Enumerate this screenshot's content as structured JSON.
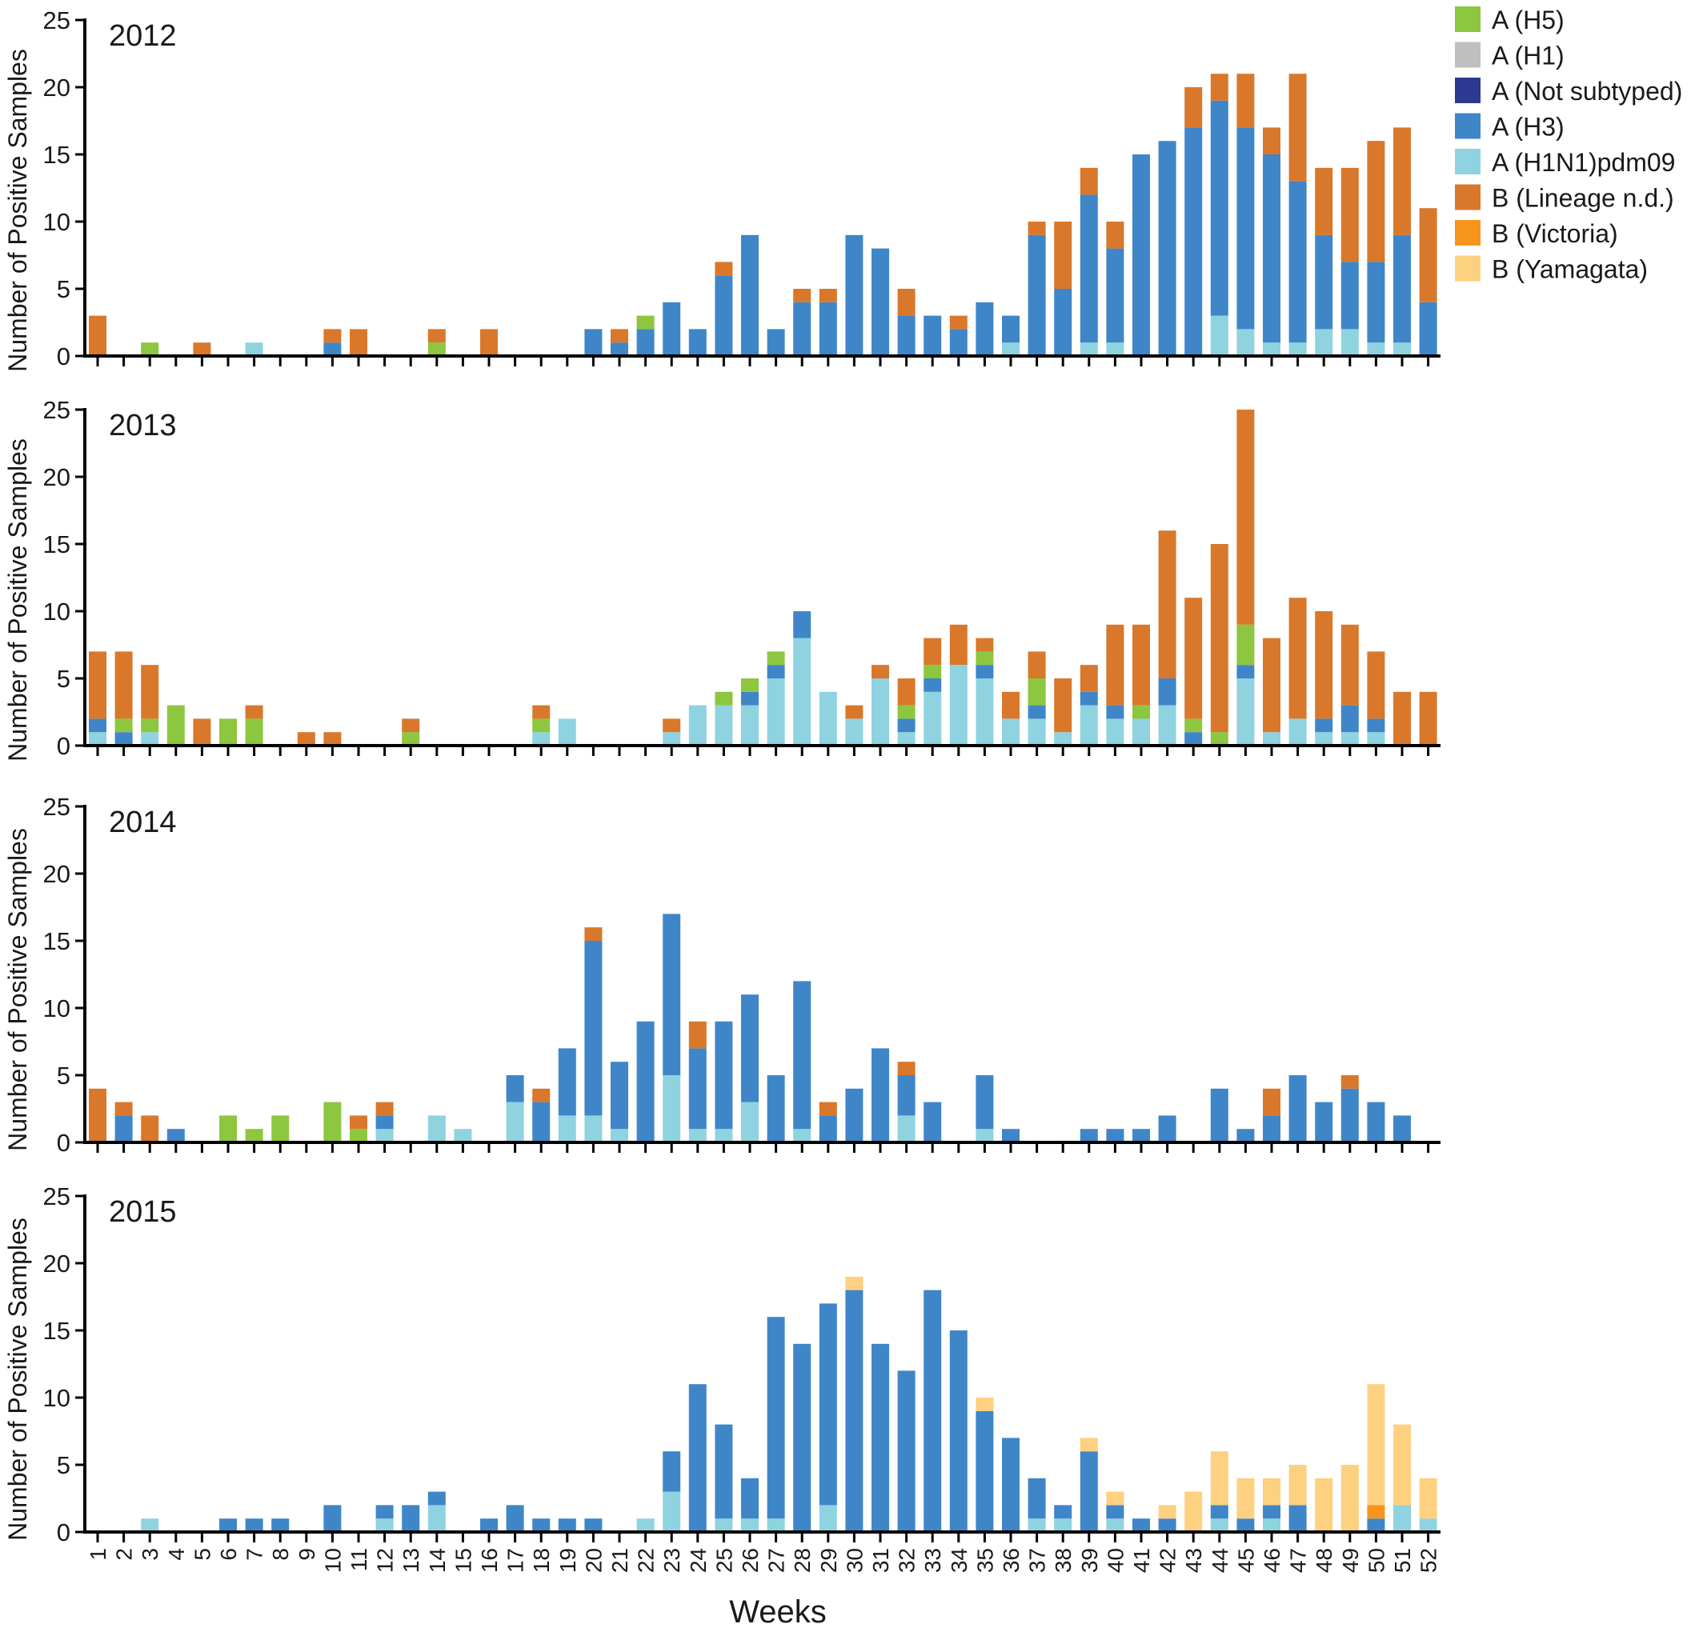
{
  "figure": {
    "ylabel": "Number of Positive Samples",
    "xlabel": "Weeks"
  },
  "legend": [
    {
      "key": "h5",
      "label": "A (H5)",
      "color": "#8dc63f"
    },
    {
      "key": "h1",
      "label": "A (H1)",
      "color": "#bfbfbf"
    },
    {
      "key": "ns",
      "label": "A (Not subtyped)",
      "color": "#2b3990"
    },
    {
      "key": "h3",
      "label": "A (H3)",
      "color": "#3f86c9"
    },
    {
      "key": "pdm",
      "label": "A (H1N1)pdm09",
      "color": "#8fd3e0"
    },
    {
      "key": "bnd",
      "label": "B (Lineage n.d.)",
      "color": "#d9782b"
    },
    {
      "key": "vic",
      "label": "B (Victoria)",
      "color": "#f7941d"
    },
    {
      "key": "yam",
      "label": "B (Yamagata)",
      "color": "#fdd17f"
    }
  ],
  "chart_data": [
    {
      "type": "bar",
      "stacked": true,
      "title": "2012",
      "x": [
        1,
        2,
        3,
        4,
        5,
        6,
        7,
        8,
        9,
        10,
        11,
        12,
        13,
        14,
        15,
        16,
        17,
        18,
        19,
        20,
        21,
        22,
        23,
        24,
        25,
        26,
        27,
        28,
        29,
        30,
        31,
        32,
        33,
        34,
        35,
        36,
        37,
        38,
        39,
        40,
        41,
        42,
        43,
        44,
        45,
        46,
        47,
        48,
        49,
        50,
        51,
        52
      ],
      "ylim": [
        0,
        25
      ],
      "yticks": [
        0,
        5,
        10,
        15,
        20,
        25
      ],
      "series": [
        {
          "name": "A (H1N1)pdm09",
          "key": "pdm",
          "values": [
            0,
            0,
            0,
            0,
            0,
            0,
            1,
            0,
            0,
            0,
            0,
            0,
            0,
            0,
            0,
            0,
            0,
            0,
            0,
            0,
            0,
            0,
            0,
            0,
            0,
            0,
            0,
            0,
            0,
            0,
            0,
            0,
            0,
            0,
            0,
            1,
            0,
            0,
            1,
            1,
            0,
            0,
            0,
            3,
            2,
            1,
            1,
            2,
            2,
            1,
            1,
            0
          ]
        },
        {
          "name": "A (H3)",
          "key": "h3",
          "values": [
            0,
            0,
            0,
            0,
            0,
            0,
            0,
            0,
            0,
            1,
            0,
            0,
            0,
            0,
            0,
            0,
            0,
            0,
            0,
            2,
            1,
            2,
            4,
            2,
            6,
            9,
            2,
            4,
            4,
            9,
            8,
            3,
            3,
            2,
            4,
            2,
            9,
            5,
            11,
            7,
            15,
            16,
            17,
            16,
            15,
            14,
            12,
            7,
            5,
            6,
            8,
            4
          ]
        },
        {
          "name": "A (H5)",
          "key": "h5",
          "values": [
            0,
            0,
            1,
            0,
            0,
            0,
            0,
            0,
            0,
            0,
            0,
            0,
            0,
            1,
            0,
            0,
            0,
            0,
            0,
            0,
            0,
            1,
            0,
            0,
            0,
            0,
            0,
            0,
            0,
            0,
            0,
            0,
            0,
            0,
            0,
            0,
            0,
            0,
            0,
            0,
            0,
            0,
            0,
            0,
            0,
            0,
            0,
            0,
            0,
            0,
            0,
            0
          ]
        },
        {
          "name": "B (Lineage n.d.)",
          "key": "bnd",
          "values": [
            3,
            0,
            0,
            0,
            1,
            0,
            0,
            0,
            0,
            1,
            2,
            0,
            0,
            1,
            0,
            2,
            0,
            0,
            0,
            0,
            1,
            0,
            0,
            0,
            1,
            0,
            0,
            1,
            1,
            0,
            0,
            2,
            0,
            1,
            0,
            0,
            1,
            5,
            2,
            2,
            0,
            0,
            3,
            2,
            4,
            2,
            8,
            5,
            7,
            9,
            8,
            7
          ]
        }
      ]
    },
    {
      "type": "bar",
      "stacked": true,
      "title": "2013",
      "x": [
        1,
        2,
        3,
        4,
        5,
        6,
        7,
        8,
        9,
        10,
        11,
        12,
        13,
        14,
        15,
        16,
        17,
        18,
        19,
        20,
        21,
        22,
        23,
        24,
        25,
        26,
        27,
        28,
        29,
        30,
        31,
        32,
        33,
        34,
        35,
        36,
        37,
        38,
        39,
        40,
        41,
        42,
        43,
        44,
        45,
        46,
        47,
        48,
        49,
        50,
        51,
        52
      ],
      "ylim": [
        0,
        25
      ],
      "yticks": [
        0,
        5,
        10,
        15,
        20,
        25
      ],
      "series": [
        {
          "name": "A (H1N1)pdm09",
          "key": "pdm",
          "values": [
            1,
            0,
            1,
            0,
            0,
            0,
            0,
            0,
            0,
            0,
            0,
            0,
            0,
            0,
            0,
            0,
            0,
            1,
            2,
            0,
            0,
            0,
            1,
            3,
            3,
            3,
            5,
            8,
            4,
            2,
            5,
            1,
            4,
            6,
            5,
            2,
            2,
            1,
            3,
            2,
            2,
            3,
            0,
            0,
            5,
            1,
            2,
            1,
            1,
            1,
            0,
            0
          ]
        },
        {
          "name": "A (H3)",
          "key": "h3",
          "values": [
            1,
            1,
            0,
            0,
            0,
            0,
            0,
            0,
            0,
            0,
            0,
            0,
            0,
            0,
            0,
            0,
            0,
            0,
            0,
            0,
            0,
            0,
            0,
            0,
            0,
            1,
            1,
            2,
            0,
            0,
            0,
            1,
            1,
            0,
            1,
            0,
            1,
            0,
            1,
            1,
            0,
            2,
            1,
            0,
            1,
            0,
            0,
            1,
            2,
            1,
            0,
            0
          ]
        },
        {
          "name": "A (H5)",
          "key": "h5",
          "values": [
            0,
            1,
            1,
            3,
            0,
            2,
            2,
            0,
            0,
            0,
            0,
            0,
            1,
            0,
            0,
            0,
            0,
            1,
            0,
            0,
            0,
            0,
            0,
            0,
            1,
            1,
            1,
            0,
            0,
            0,
            0,
            1,
            1,
            0,
            1,
            0,
            2,
            0,
            0,
            0,
            1,
            0,
            1,
            1,
            3,
            0,
            0,
            0,
            0,
            0,
            0,
            0
          ]
        },
        {
          "name": "B (Lineage n.d.)",
          "key": "bnd",
          "values": [
            5,
            5,
            4,
            0,
            2,
            0,
            1,
            0,
            1,
            1,
            0,
            0,
            1,
            0,
            0,
            0,
            0,
            1,
            0,
            0,
            0,
            0,
            1,
            0,
            0,
            0,
            0,
            0,
            0,
            1,
            1,
            2,
            2,
            3,
            1,
            2,
            2,
            4,
            2,
            6,
            6,
            11,
            9,
            14,
            16,
            7,
            9,
            8,
            6,
            5,
            4,
            4
          ]
        }
      ]
    },
    {
      "type": "bar",
      "stacked": true,
      "title": "2014",
      "x": [
        1,
        2,
        3,
        4,
        5,
        6,
        7,
        8,
        9,
        10,
        11,
        12,
        13,
        14,
        15,
        16,
        17,
        18,
        19,
        20,
        21,
        22,
        23,
        24,
        25,
        26,
        27,
        28,
        29,
        30,
        31,
        32,
        33,
        34,
        35,
        36,
        37,
        38,
        39,
        40,
        41,
        42,
        43,
        44,
        45,
        46,
        47,
        48,
        49,
        50,
        51,
        52
      ],
      "ylim": [
        0,
        25
      ],
      "yticks": [
        0,
        5,
        10,
        15,
        20,
        25
      ],
      "series": [
        {
          "name": "A (H1N1)pdm09",
          "key": "pdm",
          "values": [
            0,
            0,
            0,
            0,
            0,
            0,
            0,
            0,
            0,
            0,
            0,
            1,
            0,
            2,
            1,
            0,
            3,
            0,
            2,
            2,
            1,
            0,
            5,
            1,
            1,
            3,
            0,
            1,
            0,
            0,
            0,
            2,
            0,
            0,
            1,
            0,
            0,
            0,
            0,
            0,
            0,
            0,
            0,
            0,
            0,
            0,
            0,
            0,
            0,
            0,
            0,
            0
          ]
        },
        {
          "name": "A (H3)",
          "key": "h3",
          "values": [
            0,
            2,
            0,
            1,
            0,
            0,
            0,
            0,
            0,
            0,
            0,
            1,
            0,
            0,
            0,
            0,
            2,
            3,
            5,
            13,
            5,
            9,
            12,
            6,
            8,
            8,
            5,
            11,
            2,
            4,
            7,
            3,
            3,
            0,
            4,
            1,
            0,
            0,
            1,
            1,
            1,
            2,
            0,
            4,
            1,
            2,
            5,
            3,
            4,
            3,
            2,
            0
          ]
        },
        {
          "name": "A (H5)",
          "key": "h5",
          "values": [
            0,
            0,
            0,
            0,
            0,
            2,
            1,
            2,
            0,
            3,
            1,
            0,
            0,
            0,
            0,
            0,
            0,
            0,
            0,
            0,
            0,
            0,
            0,
            0,
            0,
            0,
            0,
            0,
            0,
            0,
            0,
            0,
            0,
            0,
            0,
            0,
            0,
            0,
            0,
            0,
            0,
            0,
            0,
            0,
            0,
            0,
            0,
            0,
            0,
            0,
            0,
            0
          ]
        },
        {
          "name": "B (Lineage n.d.)",
          "key": "bnd",
          "values": [
            4,
            1,
            2,
            0,
            0,
            0,
            0,
            0,
            0,
            0,
            1,
            1,
            0,
            0,
            0,
            0,
            0,
            1,
            0,
            1,
            0,
            0,
            0,
            2,
            0,
            0,
            0,
            0,
            1,
            0,
            0,
            1,
            0,
            0,
            0,
            0,
            0,
            0,
            0,
            0,
            0,
            0,
            0,
            0,
            0,
            2,
            0,
            0,
            1,
            0,
            0,
            0
          ]
        }
      ]
    },
    {
      "type": "bar",
      "stacked": true,
      "title": "2015",
      "x": [
        1,
        2,
        3,
        4,
        5,
        6,
        7,
        8,
        9,
        10,
        11,
        12,
        13,
        14,
        15,
        16,
        17,
        18,
        19,
        20,
        21,
        22,
        23,
        24,
        25,
        26,
        27,
        28,
        29,
        30,
        31,
        32,
        33,
        34,
        35,
        36,
        37,
        38,
        39,
        40,
        41,
        42,
        43,
        44,
        45,
        46,
        47,
        48,
        49,
        50,
        51,
        52
      ],
      "ylim": [
        0,
        25
      ],
      "yticks": [
        0,
        5,
        10,
        15,
        20,
        25
      ],
      "series": [
        {
          "name": "A (H1N1)pdm09",
          "key": "pdm",
          "values": [
            0,
            0,
            1,
            0,
            0,
            0,
            0,
            0,
            0,
            0,
            0,
            1,
            0,
            2,
            0,
            0,
            0,
            0,
            0,
            0,
            0,
            1,
            3,
            0,
            1,
            1,
            1,
            0,
            2,
            0,
            0,
            0,
            0,
            0,
            0,
            0,
            1,
            1,
            0,
            1,
            0,
            0,
            0,
            1,
            0,
            1,
            0,
            0,
            0,
            0,
            2,
            1
          ]
        },
        {
          "name": "A (H3)",
          "key": "h3",
          "values": [
            0,
            0,
            0,
            0,
            0,
            1,
            1,
            1,
            0,
            2,
            0,
            1,
            2,
            1,
            0,
            1,
            2,
            1,
            1,
            1,
            0,
            0,
            3,
            11,
            7,
            3,
            15,
            14,
            15,
            18,
            14,
            12,
            18,
            15,
            9,
            7,
            3,
            1,
            6,
            1,
            1,
            1,
            0,
            1,
            1,
            1,
            2,
            0,
            0,
            1,
            0,
            0
          ]
        },
        {
          "name": "B (Victoria)",
          "key": "vic",
          "values": [
            0,
            0,
            0,
            0,
            0,
            0,
            0,
            0,
            0,
            0,
            0,
            0,
            0,
            0,
            0,
            0,
            0,
            0,
            0,
            0,
            0,
            0,
            0,
            0,
            0,
            0,
            0,
            0,
            0,
            0,
            0,
            0,
            0,
            0,
            0,
            0,
            0,
            0,
            0,
            0,
            0,
            0,
            0,
            0,
            0,
            0,
            0,
            0,
            0,
            1,
            0,
            0
          ]
        },
        {
          "name": "B (Yamagata)",
          "key": "yam",
          "values": [
            0,
            0,
            0,
            0,
            0,
            0,
            0,
            0,
            0,
            0,
            0,
            0,
            0,
            0,
            0,
            0,
            0,
            0,
            0,
            0,
            0,
            0,
            0,
            0,
            0,
            0,
            0,
            0,
            0,
            1,
            0,
            0,
            0,
            0,
            1,
            0,
            0,
            0,
            1,
            1,
            0,
            1,
            3,
            4,
            3,
            2,
            3,
            4,
            5,
            9,
            6,
            3
          ]
        }
      ]
    }
  ]
}
